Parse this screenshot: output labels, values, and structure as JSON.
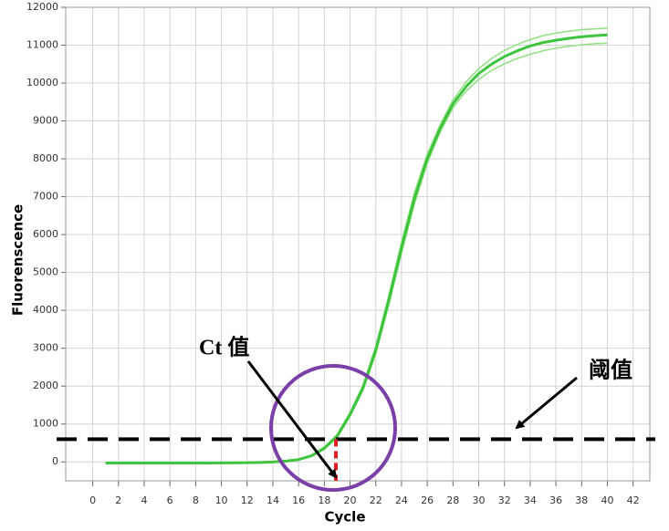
{
  "chart_data": {
    "type": "line",
    "x_label": "Cycle",
    "y_label": "Fluorenscence",
    "x": [
      1,
      2,
      3,
      4,
      5,
      6,
      7,
      8,
      9,
      10,
      11,
      12,
      13,
      14,
      15,
      16,
      17,
      18,
      19,
      20,
      21,
      22,
      23,
      24,
      25,
      26,
      27,
      28,
      29,
      30,
      31,
      32,
      33,
      34,
      35,
      36,
      37,
      38,
      39,
      40
    ],
    "series": [
      {
        "color": "#8fe07f",
        "values": [
          -30,
          -30,
          -30,
          -30,
          -30,
          -30,
          -30,
          -30,
          -30,
          -28,
          -25,
          -20,
          -15,
          -5,
          25,
          70,
          180,
          390,
          720,
          1300,
          2020,
          3050,
          4380,
          5800,
          7100,
          8120,
          8900,
          9550,
          10020,
          10380,
          10650,
          10860,
          11020,
          11150,
          11250,
          11320,
          11370,
          11410,
          11430,
          11450
        ]
      },
      {
        "color": "#8fe07f",
        "values": [
          -30,
          -30,
          -30,
          -30,
          -30,
          -30,
          -30,
          -30,
          -30,
          -28,
          -25,
          -20,
          -15,
          -5,
          15,
          50,
          145,
          335,
          640,
          1200,
          1880,
          2850,
          4120,
          5500,
          6800,
          7880,
          8700,
          9350,
          9780,
          10100,
          10330,
          10510,
          10650,
          10760,
          10850,
          10920,
          10970,
          11010,
          11040,
          11050
        ]
      },
      {
        "color": "#3ec43e",
        "values": [
          -30,
          -30,
          -30,
          -30,
          -30,
          -30,
          -30,
          -30,
          -30,
          -28,
          -25,
          -20,
          -15,
          -5,
          20,
          60,
          160,
          360,
          680,
          1250,
          1950,
          2950,
          4250,
          5650,
          6950,
          8000,
          8800,
          9450,
          9900,
          10250,
          10500,
          10700,
          10850,
          10980,
          11070,
          11130,
          11180,
          11220,
          11250,
          11270
        ]
      }
    ],
    "xlim": [
      -2.1,
      43.3
    ],
    "ylim": [
      -500,
      12000
    ],
    "xticks": [
      0,
      2,
      4,
      6,
      8,
      10,
      12,
      14,
      16,
      18,
      20,
      22,
      24,
      26,
      28,
      30,
      32,
      34,
      36,
      38,
      40,
      42
    ],
    "yticks": [
      0,
      1000,
      2000,
      3000,
      4000,
      5000,
      6000,
      7000,
      8000,
      9000,
      10000,
      11000,
      12000
    ],
    "grid": true,
    "threshold": 600,
    "threshold_label": "阈值",
    "ct": 18.9,
    "ct_label": "Ct 值"
  }
}
